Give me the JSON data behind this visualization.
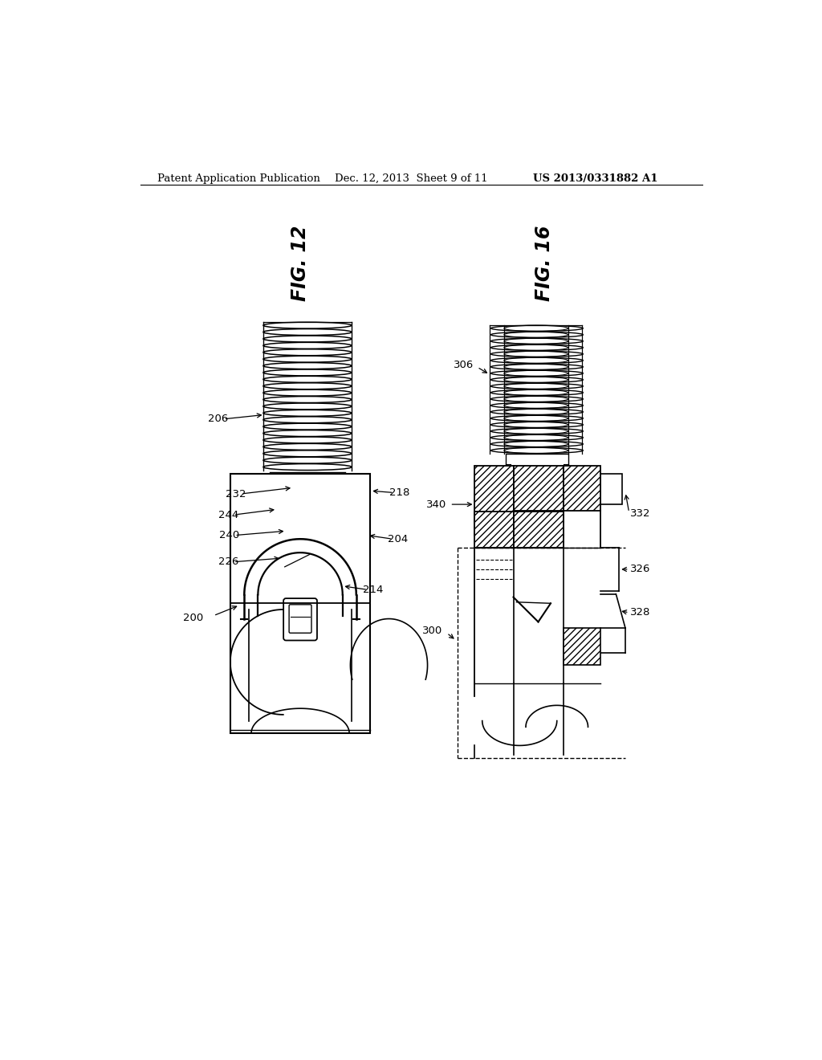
{
  "bg_color": "#ffffff",
  "header_left": "Patent Application Publication",
  "header_mid": "Dec. 12, 2013  Sheet 9 of 11",
  "header_right": "US 2013/0331882 A1"
}
